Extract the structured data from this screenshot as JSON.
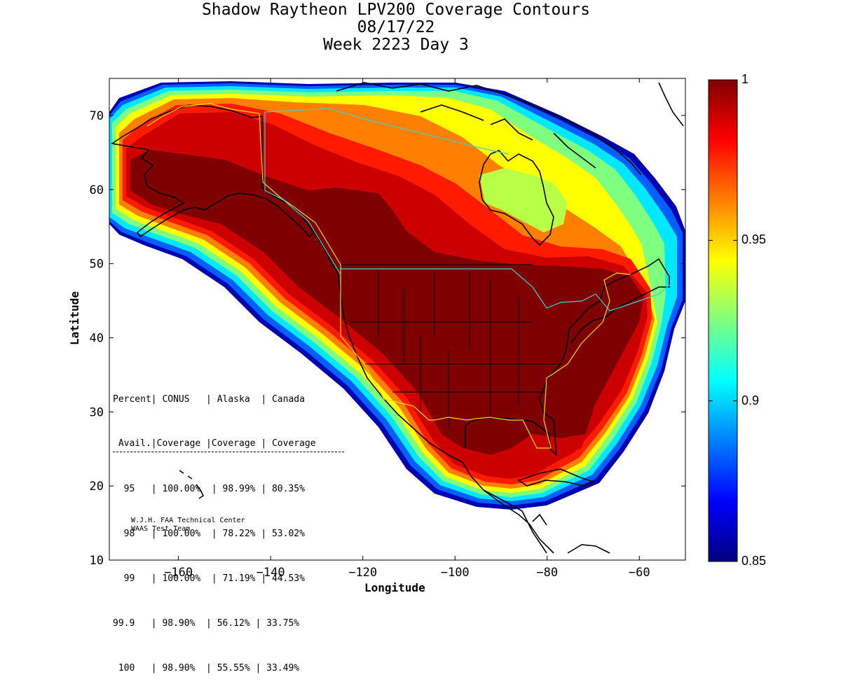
{
  "title": {
    "line1": "Shadow Raytheon LPV200 Coverage Contours",
    "line2": "08/17/22",
    "line3": "Week 2223 Day 3"
  },
  "axes": {
    "xlabel": "Longitude",
    "ylabel": "Latitude",
    "xlim": [
      -175,
      -50
    ],
    "ylim": [
      10,
      75
    ],
    "xticks": [
      -160,
      -140,
      -120,
      -100,
      -80,
      -60
    ],
    "yticks": [
      10,
      20,
      30,
      40,
      50,
      60,
      70
    ]
  },
  "colorbar": {
    "range": [
      0.85,
      1
    ],
    "ticks": [
      {
        "value": 1,
        "label": "1"
      },
      {
        "value": 0.95,
        "label": "0.95"
      },
      {
        "value": 0.9,
        "label": "0.9"
      },
      {
        "value": 0.85,
        "label": "0.85"
      }
    ],
    "colors": [
      "#00007f",
      "#0000ff",
      "#007fff",
      "#00ffff",
      "#7fff7f",
      "#ffff00",
      "#ff7f00",
      "#ff0000",
      "#7f0000"
    ]
  },
  "table": {
    "header1": "Percent| CONUS   | Alaska  | Canada",
    "header2": " Avail.|Coverage |Coverage | Coverage",
    "rows": [
      "  95   | 100.00%  | 98.99% | 80.35%",
      "  98   | 100.00%  | 78.22% | 53.02%",
      "  99   | 100.00%  | 71.19% | 44.53%",
      "99.9   | 98.90%  | 56.12% | 33.75%",
      " 100   | 98.90%  | 55.55% | 33.49%"
    ]
  },
  "credit": {
    "line1": "W.J.H. FAA Technical Center",
    "line2": "WAAS Test Team"
  },
  "map_colors": {
    "darkred": "#7f0000",
    "red": "#cc0000",
    "brightred": "#ff1a00",
    "orange": "#ff8000",
    "amber": "#ffb000",
    "yellow": "#e8ff30",
    "yellowgreen": "#b8ff48",
    "cyan": "#00e8ff",
    "blue": "#0060ff",
    "navy": "#0000b0",
    "boundary_yellow": "#e8e000",
    "boundary_cyan": "#40d0d0"
  }
}
